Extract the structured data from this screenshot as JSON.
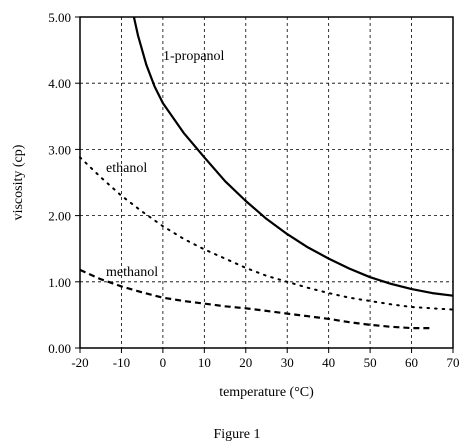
{
  "chart_data": {
    "type": "line",
    "title": "",
    "caption": "Figure 1",
    "xlabel": "temperature (°C)",
    "ylabel": "viscosity (cp)",
    "xlim": [
      -20,
      70
    ],
    "ylim": [
      0,
      5
    ],
    "xticks": [
      "-20",
      "-10",
      "0",
      "10",
      "20",
      "30",
      "40",
      "50",
      "60",
      "70"
    ],
    "yticks": [
      "0.00",
      "1.00",
      "2.00",
      "3.00",
      "4.00",
      "5.00"
    ],
    "grid": true,
    "series": [
      {
        "name": "1-propanol",
        "style": "solid",
        "color": "#000000",
        "x": [
          -7,
          -6,
          -4,
          -2,
          0,
          5,
          10,
          15,
          20,
          25,
          30,
          35,
          40,
          45,
          50,
          55,
          60,
          65,
          70
        ],
        "y": [
          5.0,
          4.72,
          4.28,
          3.95,
          3.7,
          3.25,
          2.88,
          2.52,
          2.22,
          1.95,
          1.72,
          1.52,
          1.35,
          1.2,
          1.07,
          0.97,
          0.89,
          0.83,
          0.79
        ]
      },
      {
        "name": "ethanol",
        "style": "dotted",
        "color": "#000000",
        "x": [
          -20,
          -15,
          -10,
          -5,
          0,
          5,
          10,
          15,
          20,
          25,
          30,
          35,
          40,
          45,
          50,
          55,
          60,
          65,
          70
        ],
        "y": [
          2.88,
          2.58,
          2.3,
          2.06,
          1.84,
          1.65,
          1.49,
          1.35,
          1.21,
          1.09,
          1.0,
          0.91,
          0.83,
          0.76,
          0.71,
          0.66,
          0.62,
          0.6,
          0.58
        ]
      },
      {
        "name": "methanol",
        "style": "dashed",
        "color": "#000000",
        "x": [
          -20,
          -15,
          -10,
          -5,
          0,
          5,
          10,
          15,
          20,
          25,
          30,
          35,
          40,
          45,
          50,
          55,
          60,
          65
        ],
        "y": [
          1.18,
          1.04,
          0.93,
          0.84,
          0.76,
          0.71,
          0.67,
          0.63,
          0.6,
          0.56,
          0.52,
          0.48,
          0.44,
          0.39,
          0.35,
          0.32,
          0.3,
          0.3
        ]
      }
    ]
  }
}
